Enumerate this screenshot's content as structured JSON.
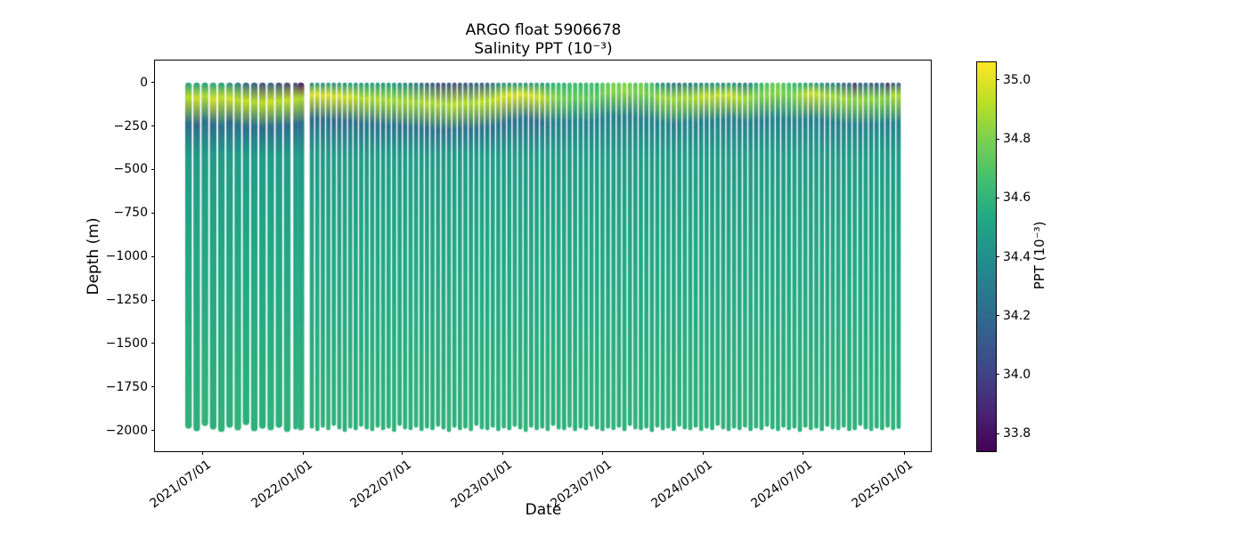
{
  "figure": {
    "title": "ARGO float 5906678",
    "subtitle": "Salinity PPT (10⁻³)",
    "xlabel": "Date",
    "ylabel": "Depth (m)",
    "colorbar_label": "PPT (10⁻³)"
  },
  "chart_data": {
    "type": "heatmap",
    "title": "ARGO float 5906678",
    "subtitle": "Salinity PPT (10⁻³)",
    "xlabel": "Date",
    "ylabel": "Depth (m)",
    "colormap": "viridis",
    "grid": false,
    "legend": false,
    "ylim": [
      -2120,
      125
    ],
    "y_ticks": [
      0,
      -250,
      -500,
      -750,
      -1000,
      -1250,
      -1500,
      -1750,
      -2000
    ],
    "y_tick_labels": [
      "0",
      "−250",
      "−500",
      "−750",
      "−1000",
      "−1250",
      "−1500",
      "−1750",
      "−2000"
    ],
    "x_tick_dates": [
      "2021-07-01",
      "2022-01-01",
      "2022-07-01",
      "2023-01-01",
      "2023-07-01",
      "2024-01-01",
      "2024-07-01",
      "2025-01-01"
    ],
    "x_tick_labels": [
      "2021/07/01",
      "2022/01/01",
      "2022/07/01",
      "2023/01/01",
      "2023/07/01",
      "2024/01/01",
      "2024/07/01",
      "2025/01/01"
    ],
    "colorbar": {
      "label": "PPT (10⁻³)",
      "vmin": 33.74,
      "vmax": 35.06,
      "ticks": [
        35.0,
        34.8,
        34.6,
        34.4,
        34.2,
        34.0,
        33.8
      ],
      "tick_labels": [
        "35.0",
        "34.8",
        "34.6",
        "34.4",
        "34.2",
        "34.0",
        "33.8"
      ]
    },
    "depth_surface_m": 0,
    "mid_stops": [
      [
        -420,
        34.46
      ],
      [
        -1000,
        34.53
      ]
    ],
    "missing_profiles": [
      "2022-01-07"
    ],
    "profile_columns": [
      "date",
      "salinity_surface",
      "salinity_max",
      "salinity_max_depth_m",
      "salinity_min",
      "salinity_min_depth_m",
      "salinity_deep",
      "profile_bottom_depth_m"
    ],
    "profiles": [
      [
        "2021-06-06",
        34.48,
        34.92,
        -85,
        34.22,
        -235,
        34.59,
        -1990
      ],
      [
        "2021-06-21",
        34.5,
        34.96,
        -90,
        34.2,
        -245,
        34.58,
        -2005
      ],
      [
        "2021-07-06",
        34.46,
        34.9,
        -80,
        34.24,
        -225,
        34.6,
        -1975
      ],
      [
        "2021-07-21",
        34.52,
        34.98,
        -95,
        34.21,
        -240,
        34.58,
        -1995
      ],
      [
        "2021-08-05",
        34.45,
        34.94,
        -85,
        34.23,
        -250,
        34.59,
        -2010
      ],
      [
        "2021-08-20",
        34.4,
        34.97,
        -90,
        34.2,
        -230,
        34.58,
        -1985
      ],
      [
        "2021-09-04",
        34.3,
        34.92,
        -100,
        34.22,
        -245,
        34.6,
        -2000
      ],
      [
        "2021-09-19",
        34.18,
        34.95,
        -105,
        34.21,
        -255,
        34.58,
        -1970
      ],
      [
        "2021-10-04",
        34.1,
        34.9,
        -110,
        34.23,
        -250,
        34.59,
        -2005
      ],
      [
        "2021-10-19",
        34.05,
        34.93,
        -115,
        34.2,
        -260,
        34.58,
        -1990
      ],
      [
        "2021-11-03",
        34.12,
        34.96,
        -110,
        34.22,
        -255,
        34.59,
        -2000
      ],
      [
        "2021-11-18",
        34.06,
        34.91,
        -105,
        34.24,
        -250,
        34.58,
        -1985
      ],
      [
        "2021-12-03",
        34.0,
        34.94,
        -100,
        34.22,
        -245,
        34.6,
        -2010
      ],
      [
        "2021-12-18",
        33.98,
        34.92,
        -95,
        34.2,
        -240,
        34.58,
        -1995
      ],
      [
        "2021-12-28",
        33.82,
        34.9,
        -90,
        34.22,
        -235,
        34.59,
        -2000
      ],
      [
        "2022-01-17",
        34.35,
        34.99,
        -70,
        34.2,
        -210,
        34.58,
        -1990
      ],
      [
        "2022-01-27",
        34.4,
        35.0,
        -65,
        34.22,
        -205,
        34.59,
        -2005
      ],
      [
        "2022-02-06",
        34.38,
        34.98,
        -75,
        34.21,
        -215,
        34.58,
        -1985
      ],
      [
        "2022-02-16",
        34.42,
        35.0,
        -70,
        34.23,
        -210,
        34.6,
        -2000
      ],
      [
        "2022-02-26",
        34.36,
        34.97,
        -80,
        34.2,
        -220,
        34.58,
        -1975
      ],
      [
        "2022-03-08",
        34.44,
        34.99,
        -75,
        34.22,
        -215,
        34.59,
        -1995
      ],
      [
        "2022-03-18",
        34.4,
        34.96,
        -85,
        34.21,
        -225,
        34.58,
        -2010
      ],
      [
        "2022-03-28",
        34.45,
        34.98,
        -80,
        34.23,
        -220,
        34.6,
        -1990
      ],
      [
        "2022-04-07",
        34.42,
        34.93,
        -85,
        34.24,
        -230,
        34.58,
        -2000
      ],
      [
        "2022-04-17",
        34.46,
        34.9,
        -90,
        34.22,
        -235,
        34.59,
        -1980
      ],
      [
        "2022-04-27",
        34.44,
        34.92,
        -95,
        34.25,
        -240,
        34.58,
        -1995
      ],
      [
        "2022-05-07",
        34.48,
        34.88,
        -90,
        34.23,
        -235,
        34.6,
        -2005
      ],
      [
        "2022-05-17",
        34.45,
        34.91,
        -100,
        34.24,
        -245,
        34.58,
        -1985
      ],
      [
        "2022-05-27",
        34.42,
        34.87,
        -95,
        34.22,
        -240,
        34.59,
        -2000
      ],
      [
        "2022-06-06",
        34.46,
        34.9,
        -105,
        34.25,
        -250,
        34.58,
        -1990
      ],
      [
        "2022-06-16",
        34.43,
        34.86,
        -100,
        34.23,
        -245,
        34.6,
        -2010
      ],
      [
        "2022-06-26",
        34.4,
        34.89,
        -110,
        34.24,
        -255,
        34.58,
        -1975
      ],
      [
        "2022-07-06",
        34.38,
        34.87,
        -105,
        34.22,
        -250,
        34.59,
        -1995
      ],
      [
        "2022-07-16",
        34.32,
        34.9,
        -110,
        34.25,
        -260,
        34.58,
        -2000
      ],
      [
        "2022-07-26",
        34.28,
        34.86,
        -115,
        34.23,
        -255,
        34.6,
        -1985
      ],
      [
        "2022-08-05",
        34.22,
        34.89,
        -110,
        34.24,
        -265,
        34.58,
        -2005
      ],
      [
        "2022-08-15",
        34.18,
        34.92,
        -120,
        34.22,
        -260,
        34.59,
        -1990
      ],
      [
        "2022-08-25",
        34.1,
        34.88,
        -115,
        34.25,
        -270,
        34.58,
        -2000
      ],
      [
        "2022-09-04",
        34.06,
        34.91,
        -125,
        34.23,
        -265,
        34.59,
        -1980
      ],
      [
        "2022-09-14",
        34.04,
        34.87,
        -120,
        34.24,
        -270,
        34.58,
        -1995
      ],
      [
        "2022-09-24",
        34.08,
        34.9,
        -130,
        34.22,
        -275,
        34.6,
        -2010
      ],
      [
        "2022-10-04",
        34.05,
        34.93,
        -125,
        34.25,
        -270,
        34.58,
        -1985
      ],
      [
        "2022-10-14",
        34.1,
        34.89,
        -120,
        34.23,
        -265,
        34.59,
        -2000
      ],
      [
        "2022-10-24",
        34.07,
        34.92,
        -115,
        34.24,
        -260,
        34.58,
        -1990
      ],
      [
        "2022-11-03",
        34.12,
        34.88,
        -120,
        34.22,
        -270,
        34.6,
        -2005
      ],
      [
        "2022-11-13",
        34.15,
        34.91,
        -115,
        34.25,
        -265,
        34.58,
        -1975
      ],
      [
        "2022-11-23",
        34.12,
        34.94,
        -110,
        34.23,
        -260,
        34.59,
        -1995
      ],
      [
        "2022-12-03",
        34.18,
        34.9,
        -105,
        34.24,
        -255,
        34.58,
        -2000
      ],
      [
        "2022-12-13",
        34.25,
        34.93,
        -100,
        34.22,
        -250,
        34.59,
        -1985
      ],
      [
        "2022-12-23",
        34.35,
        34.96,
        -90,
        34.25,
        -240,
        34.58,
        -2005
      ],
      [
        "2023-01-02",
        34.4,
        34.99,
        -80,
        34.23,
        -230,
        34.6,
        -1990
      ],
      [
        "2023-01-12",
        34.38,
        35.0,
        -70,
        34.24,
        -220,
        34.58,
        -2000
      ],
      [
        "2023-01-22",
        34.42,
        34.98,
        -75,
        34.22,
        -215,
        34.59,
        -1980
      ],
      [
        "2023-02-01",
        34.45,
        35.0,
        -65,
        34.25,
        -210,
        34.58,
        -1995
      ],
      [
        "2023-02-11",
        34.4,
        34.97,
        -70,
        34.23,
        -205,
        34.6,
        -2010
      ],
      [
        "2023-02-21",
        34.44,
        34.99,
        -75,
        34.24,
        -215,
        34.58,
        -1985
      ],
      [
        "2023-03-03",
        34.48,
        34.96,
        -80,
        34.22,
        -220,
        34.59,
        -2000
      ],
      [
        "2023-03-13",
        34.45,
        34.93,
        -85,
        34.25,
        -225,
        34.58,
        -1990
      ],
      [
        "2023-03-23",
        34.52,
        34.88,
        -90,
        34.28,
        -230,
        34.6,
        -2005
      ],
      [
        "2023-04-02",
        34.56,
        34.84,
        -85,
        34.3,
        -225,
        34.58,
        -1975
      ],
      [
        "2023-04-12",
        34.6,
        34.8,
        -90,
        34.32,
        -220,
        34.59,
        -1995
      ],
      [
        "2023-04-22",
        34.58,
        34.78,
        -95,
        34.3,
        -230,
        34.58,
        -2000
      ],
      [
        "2023-05-02",
        34.62,
        34.76,
        -90,
        34.33,
        -225,
        34.6,
        -1985
      ],
      [
        "2023-05-12",
        34.65,
        34.74,
        -85,
        34.31,
        -215,
        34.58,
        -2005
      ],
      [
        "2023-05-22",
        34.6,
        34.77,
        -90,
        34.34,
        -220,
        34.59,
        -1990
      ],
      [
        "2023-06-01",
        34.63,
        34.73,
        -95,
        34.32,
        -230,
        34.58,
        -2000
      ],
      [
        "2023-06-11",
        34.66,
        34.75,
        -90,
        34.3,
        -225,
        34.6,
        -1980
      ],
      [
        "2023-06-21",
        34.62,
        34.72,
        -85,
        34.33,
        -215,
        34.58,
        -1995
      ],
      [
        "2023-07-01",
        34.7,
        34.78,
        -60,
        34.31,
        -200,
        34.59,
        -2005
      ],
      [
        "2023-07-11",
        34.74,
        34.8,
        -55,
        34.34,
        -195,
        34.58,
        -1990
      ],
      [
        "2023-07-21",
        34.78,
        34.83,
        -50,
        34.32,
        -190,
        34.6,
        -2000
      ],
      [
        "2023-07-31",
        34.75,
        34.81,
        -55,
        34.3,
        -200,
        34.58,
        -1985
      ],
      [
        "2023-08-10",
        34.8,
        34.85,
        -50,
        34.33,
        -195,
        34.59,
        -2005
      ],
      [
        "2023-08-20",
        34.77,
        34.82,
        -55,
        34.31,
        -190,
        34.58,
        -1975
      ],
      [
        "2023-08-30",
        34.72,
        34.79,
        -60,
        34.34,
        -200,
        34.6,
        -1995
      ],
      [
        "2023-09-09",
        34.76,
        34.82,
        -55,
        34.32,
        -205,
        34.58,
        -2000
      ],
      [
        "2023-09-19",
        34.7,
        34.78,
        -65,
        34.3,
        -210,
        34.59,
        -1990
      ],
      [
        "2023-09-29",
        34.65,
        34.8,
        -70,
        34.33,
        -215,
        34.58,
        -2010
      ],
      [
        "2023-10-09",
        34.45,
        34.84,
        -80,
        34.31,
        -225,
        34.6,
        -1985
      ],
      [
        "2023-10-19",
        34.38,
        34.87,
        -85,
        34.34,
        -230,
        34.58,
        -2000
      ],
      [
        "2023-10-29",
        34.32,
        34.85,
        -90,
        34.32,
        -235,
        34.59,
        -1990
      ],
      [
        "2023-11-08",
        34.28,
        34.88,
        -95,
        34.3,
        -240,
        34.58,
        -2005
      ],
      [
        "2023-11-18",
        34.25,
        34.86,
        -90,
        34.33,
        -235,
        34.6,
        -1980
      ],
      [
        "2023-11-28",
        34.3,
        34.89,
        -85,
        34.31,
        -230,
        34.58,
        -1995
      ],
      [
        "2023-12-08",
        34.27,
        34.87,
        -90,
        34.34,
        -225,
        34.59,
        -2000
      ],
      [
        "2023-12-18",
        34.33,
        34.9,
        -85,
        34.32,
        -230,
        34.58,
        -1985
      ],
      [
        "2023-12-28",
        34.36,
        34.92,
        -80,
        34.3,
        -220,
        34.6,
        -2005
      ],
      [
        "2024-01-07",
        34.4,
        34.94,
        -75,
        34.33,
        -215,
        34.58,
        -1990
      ],
      [
        "2024-01-17",
        34.36,
        34.91,
        -80,
        34.31,
        -220,
        34.59,
        -2000
      ],
      [
        "2024-01-27",
        34.42,
        34.95,
        -70,
        34.34,
        -210,
        34.58,
        -1975
      ],
      [
        "2024-02-06",
        34.38,
        34.92,
        -75,
        34.32,
        -215,
        34.6,
        -1995
      ],
      [
        "2024-02-16",
        34.44,
        34.96,
        -70,
        34.3,
        -205,
        34.58,
        -2005
      ],
      [
        "2024-02-26",
        34.4,
        34.93,
        -80,
        34.33,
        -210,
        34.59,
        -1990
      ],
      [
        "2024-03-07",
        34.35,
        34.9,
        -85,
        34.31,
        -220,
        34.58,
        -2000
      ],
      [
        "2024-03-17",
        34.3,
        34.88,
        -90,
        34.34,
        -225,
        34.6,
        -1985
      ],
      [
        "2024-03-27",
        34.34,
        34.85,
        -85,
        34.32,
        -230,
        34.58,
        -2005
      ],
      [
        "2024-04-06",
        34.55,
        34.82,
        -80,
        34.3,
        -220,
        34.59,
        -1990
      ],
      [
        "2024-04-16",
        34.62,
        34.8,
        -75,
        34.33,
        -215,
        34.58,
        -2000
      ],
      [
        "2024-04-26",
        34.68,
        34.84,
        -70,
        34.31,
        -210,
        34.6,
        -1980
      ],
      [
        "2024-05-06",
        34.72,
        34.81,
        -65,
        34.34,
        -205,
        34.58,
        -1995
      ],
      [
        "2024-05-16",
        34.75,
        34.83,
        -60,
        34.32,
        -200,
        34.59,
        -2005
      ],
      [
        "2024-05-26",
        34.7,
        34.8,
        -65,
        34.3,
        -210,
        34.58,
        -1985
      ],
      [
        "2024-06-05",
        34.66,
        34.78,
        -70,
        34.33,
        -215,
        34.6,
        -2000
      ],
      [
        "2024-06-15",
        34.6,
        34.82,
        -75,
        34.31,
        -220,
        34.58,
        -1990
      ],
      [
        "2024-06-25",
        34.55,
        34.86,
        -70,
        34.34,
        -215,
        34.59,
        -2010
      ],
      [
        "2024-07-05",
        34.5,
        34.92,
        -65,
        34.32,
        -210,
        34.58,
        -1985
      ],
      [
        "2024-07-15",
        34.46,
        34.96,
        -60,
        34.3,
        -205,
        34.6,
        -2000
      ],
      [
        "2024-07-25",
        34.42,
        34.94,
        -65,
        34.33,
        -210,
        34.58,
        -1990
      ],
      [
        "2024-08-04",
        34.38,
        34.9,
        -70,
        34.31,
        -215,
        34.59,
        -2005
      ],
      [
        "2024-08-14",
        34.34,
        34.87,
        -75,
        34.34,
        -220,
        34.58,
        -1980
      ],
      [
        "2024-08-24",
        34.3,
        34.89,
        -80,
        34.32,
        -225,
        34.6,
        -1995
      ],
      [
        "2024-09-03",
        34.26,
        34.85,
        -85,
        34.3,
        -230,
        34.58,
        -2000
      ],
      [
        "2024-09-13",
        34.2,
        34.88,
        -90,
        34.33,
        -235,
        34.59,
        -1985
      ],
      [
        "2024-09-23",
        34.16,
        34.84,
        -95,
        34.31,
        -240,
        34.58,
        -2005
      ],
      [
        "2024-10-03",
        33.92,
        34.83,
        -95,
        34.32,
        -240,
        34.58,
        -2000
      ],
      [
        "2024-10-13",
        34.12,
        34.86,
        -100,
        34.3,
        -245,
        34.59,
        -1975
      ],
      [
        "2024-10-23",
        34.18,
        34.82,
        -95,
        34.33,
        -240,
        34.58,
        -1995
      ],
      [
        "2024-11-02",
        34.14,
        34.85,
        -90,
        34.31,
        -235,
        34.6,
        -2005
      ],
      [
        "2024-11-12",
        34.1,
        34.81,
        -95,
        34.34,
        -240,
        34.58,
        -1990
      ],
      [
        "2024-11-22",
        34.16,
        34.84,
        -90,
        34.32,
        -235,
        34.59,
        -2000
      ],
      [
        "2024-12-02",
        33.95,
        34.8,
        -85,
        34.3,
        -230,
        34.58,
        -1985
      ],
      [
        "2024-12-12",
        34.1,
        34.9,
        -70,
        34.33,
        -235,
        34.6,
        -2000
      ],
      [
        "2024-12-22",
        34.14,
        34.88,
        -75,
        34.31,
        -230,
        34.58,
        -1992
      ]
    ]
  }
}
